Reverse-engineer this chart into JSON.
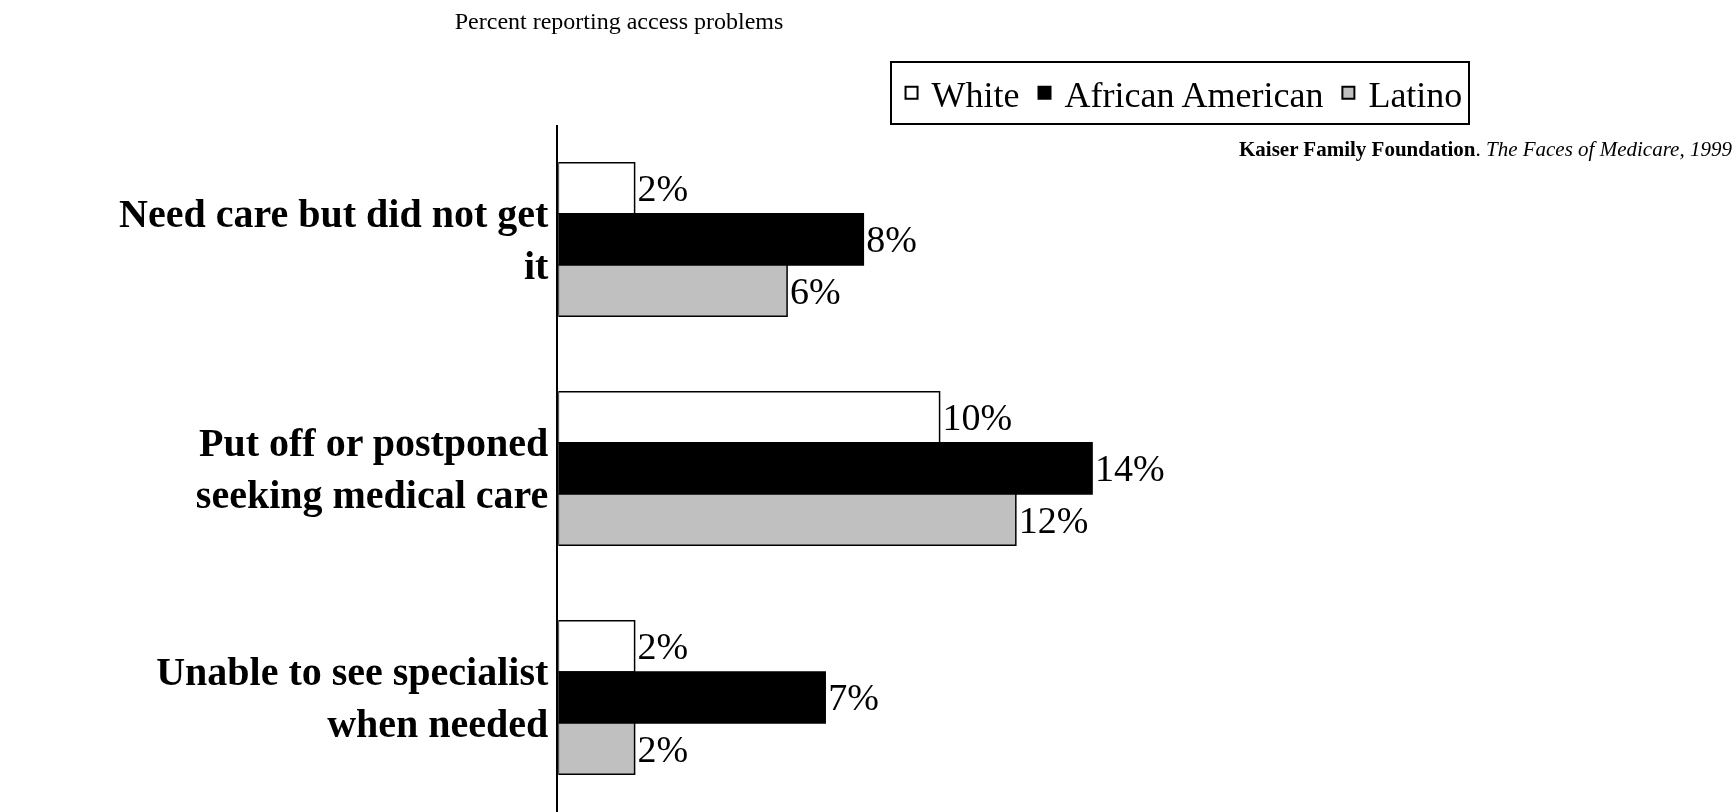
{
  "chart_data": {
    "type": "bar",
    "orientation": "horizontal",
    "title": "Percent reporting access problems",
    "categories": [
      "Need care but did not get it",
      "Put off or postponed seeking medical care",
      "Unable to see specialist when needed"
    ],
    "series": [
      {
        "name": "White",
        "color": "#ffffff",
        "values": [
          2,
          10,
          2
        ],
        "value_labels": [
          "2%",
          "10%",
          "2%"
        ]
      },
      {
        "name": "African American",
        "color": "#000000",
        "values": [
          8,
          14,
          7
        ],
        "value_labels": [
          "8%",
          "14%",
          "7%"
        ]
      },
      {
        "name": "Latino",
        "color": "#c0c0c0",
        "values": [
          6,
          12,
          2
        ],
        "value_labels": [
          "6%",
          "12%",
          "2%"
        ]
      }
    ],
    "annotations": [
      "Kaiser Family Foundation. The Faces of Medicare, 1999"
    ],
    "legend": "top right"
  }
}
